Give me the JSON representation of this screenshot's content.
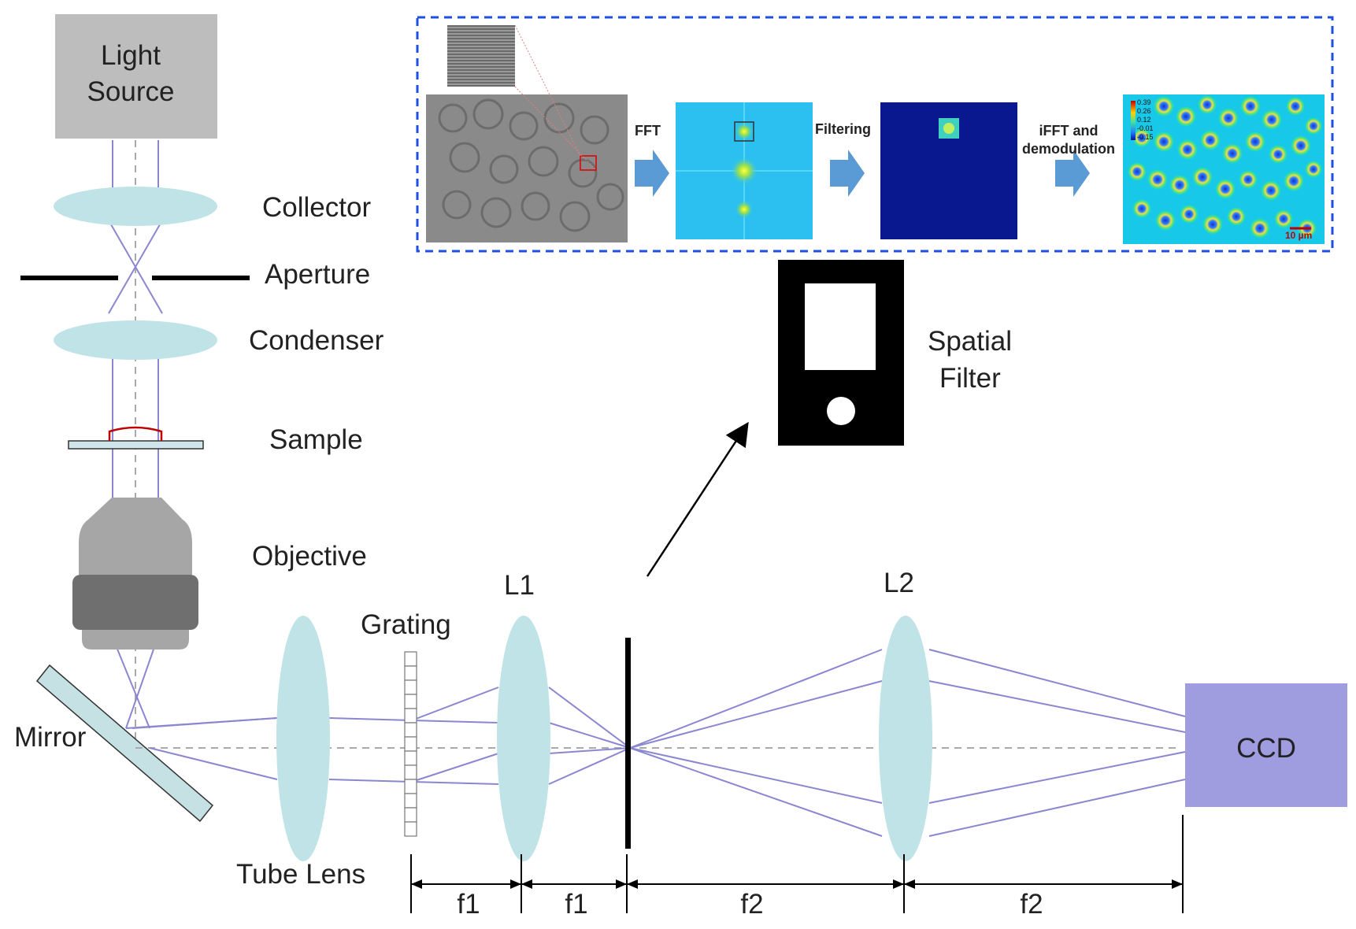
{
  "labels": {
    "light_source_1": "Light",
    "light_source_2": "Source",
    "collector": "Collector",
    "aperture": "Aperture",
    "condenser": "Condenser",
    "sample": "Sample",
    "objective": "Objective",
    "mirror": "Mirror",
    "tube_lens": "Tube Lens",
    "grating": "Grating",
    "l1": "L1",
    "l2": "L2",
    "ccd": "CCD",
    "spatial_filter_1": "Spatial",
    "spatial_filter_2": "Filter",
    "f1_a": "f1",
    "f1_b": "f1",
    "f2_a": "f2",
    "f2_b": "f2"
  },
  "processing": {
    "fft": "FFT",
    "filtering": "Filtering",
    "ifft_1": "iFFT and",
    "ifft_2": "demodulation",
    "colorbar_ticks": [
      "0.39",
      "0.26",
      "0.12",
      "-0.01",
      "-0.15"
    ],
    "scale_bar": "10 µm"
  },
  "colors": {
    "beam": "#8a87d0",
    "lens": "#bfe3e6",
    "light_source": "#bdbdbd",
    "ccd": "#9f9ce0",
    "dashed_box": "#1f4fe0",
    "arrow": "#5b9bd5"
  }
}
